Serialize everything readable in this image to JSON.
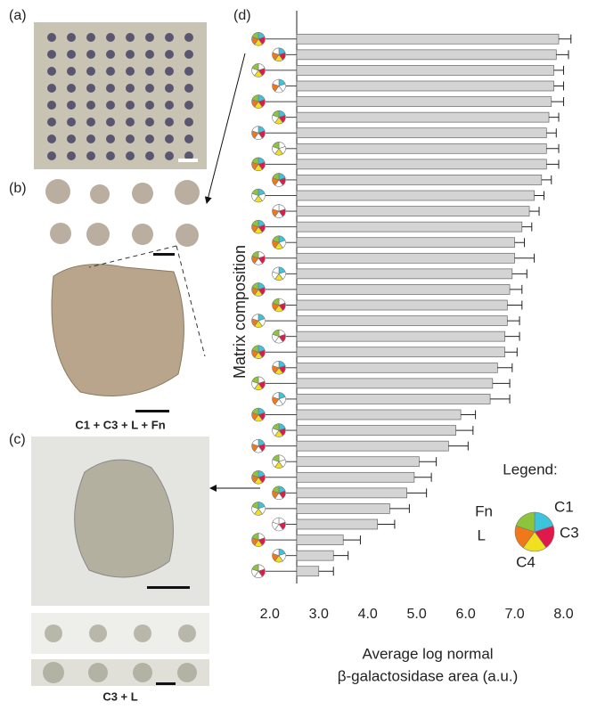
{
  "panel_labels": [
    "(a)",
    "(b)",
    "(c)"
  ],
  "captions": [
    "C1 + C3 + L + Fn",
    "C3 + L"
  ],
  "chart_data": {
    "type": "hbar",
    "panel_label": "(d)",
    "y_label": "Matrix composition",
    "x_label": [
      "Average log normal",
      "β-galactosidase area (a.u.)"
    ],
    "categories": [
      null,
      null,
      null,
      null,
      null,
      null,
      null,
      null,
      null,
      null,
      null,
      null,
      null,
      null,
      null,
      null,
      null,
      null,
      null,
      null,
      null,
      null,
      null,
      null,
      null,
      null,
      null,
      null,
      null,
      null,
      null,
      null,
      null,
      null,
      null
    ],
    "series": [
      {
        "color": "#d4d4d4",
        "values": [
          7.9,
          7.85,
          7.8,
          7.8,
          7.75,
          7.7,
          7.65,
          7.65,
          7.65,
          7.55,
          7.4,
          7.3,
          7.15,
          7.0,
          7.0,
          6.95,
          6.9,
          6.85,
          6.85,
          6.8,
          6.8,
          6.65,
          6.55,
          6.5,
          5.9,
          5.8,
          5.65,
          5.05,
          4.95,
          4.8,
          4.45,
          4.2,
          3.5,
          3.3,
          3.0
        ],
        "errors": [
          0.25,
          0.25,
          0.2,
          0.2,
          0.25,
          0.2,
          0.2,
          0.25,
          0.25,
          0.2,
          0.2,
          0.2,
          0.2,
          0.2,
          0.4,
          0.3,
          0.25,
          0.3,
          0.25,
          0.3,
          0.25,
          0.3,
          0.35,
          0.4,
          0.3,
          0.35,
          0.4,
          0.35,
          0.35,
          0.4,
          0.4,
          0.35,
          0.35,
          0.3,
          0.3
        ]
      }
    ],
    "xlim": [
      2.55,
      8.5
    ],
    "xticks": [
      {
        "value": 2,
        "label": "2.0"
      },
      {
        "value": 3,
        "label": "3.0"
      },
      {
        "value": 4,
        "label": "4.0"
      },
      {
        "value": 5,
        "label": "5.0"
      },
      {
        "value": 6,
        "label": "6.0"
      },
      {
        "value": 7,
        "label": "7.0"
      },
      {
        "value": 8,
        "label": "8.0"
      }
    ],
    "legend": {
      "title": "Legend:",
      "entries": [
        {
          "name": "Fn",
          "color": "#3cc4dc"
        },
        {
          "name": "C1",
          "color": "#e0194c"
        },
        {
          "name": "C3",
          "color": "#f0e020"
        },
        {
          "name": "C4",
          "color": "#f07818"
        },
        {
          "name": "L",
          "color": "#8cc43c"
        }
      ]
    }
  }
}
